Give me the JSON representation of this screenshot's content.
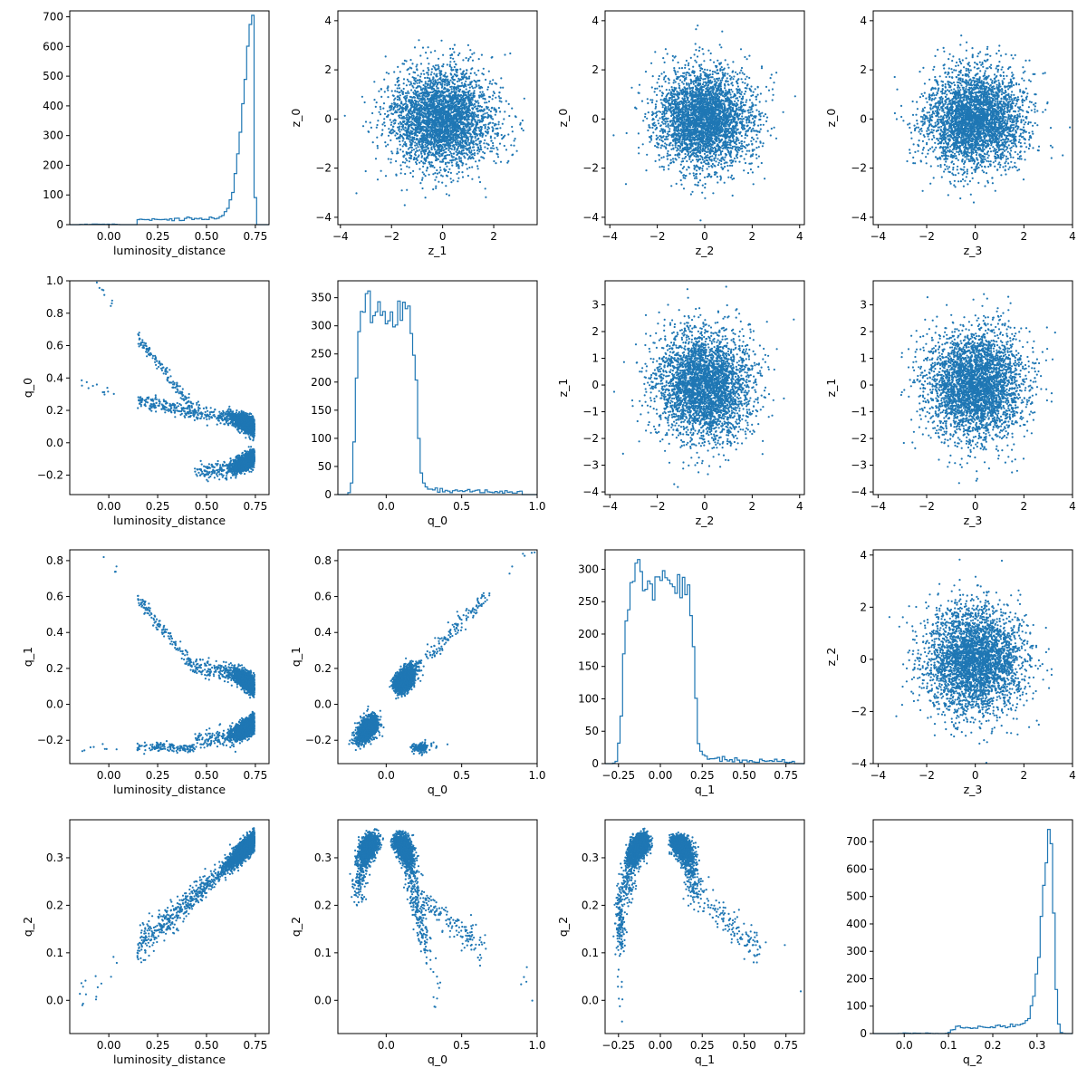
{
  "chart_data": {
    "type": "pairplot",
    "color": "#1f77b4",
    "points_per_scatter": 3500,
    "rows": [
      "z_0",
      "q_0",
      "q_1",
      "q_2"
    ],
    "panels": [
      {
        "row": 0,
        "col": 0,
        "type": "histogram",
        "x": "luminosity_distance",
        "xlabel": "luminosity_distance",
        "xlim": [
          -0.2,
          0.82
        ],
        "ylim": [
          0,
          720
        ],
        "xticks": [
          "0.00",
          "0.25",
          "0.50",
          "0.75"
        ],
        "xtickvals": [
          0,
          0.25,
          0.5,
          0.75
        ],
        "yticks": [
          "0",
          "100",
          "200",
          "300",
          "400",
          "500",
          "600",
          "700"
        ],
        "ytickvals": [
          0,
          100,
          200,
          300,
          400,
          500,
          600,
          700
        ],
        "peak": 705,
        "mode": 0.745
      },
      {
        "row": 0,
        "col": 1,
        "type": "scatter",
        "x": "z_1",
        "y": "z_0",
        "xlabel": "z_1",
        "ylabel": "z_0",
        "xlim": [
          -4.1,
          3.7
        ],
        "ylim": [
          -4.3,
          4.4
        ],
        "xticks": [
          "−4",
          "−2",
          "0",
          "2"
        ],
        "xtickvals": [
          -4,
          -2,
          0,
          2
        ],
        "yticks": [
          "−4",
          "−2",
          "0",
          "2",
          "4"
        ],
        "ytickvals": [
          -4,
          -2,
          0,
          2,
          4
        ]
      },
      {
        "row": 0,
        "col": 2,
        "type": "scatter",
        "x": "z_2",
        "y": "z_0",
        "xlabel": "z_2",
        "ylabel": "z_0",
        "xlim": [
          -4.2,
          4.2
        ],
        "ylim": [
          -4.3,
          4.4
        ],
        "xticks": [
          "−4",
          "−2",
          "0",
          "2",
          "4"
        ],
        "xtickvals": [
          -4,
          -2,
          0,
          2,
          4
        ],
        "yticks": [
          "−4",
          "−2",
          "0",
          "2",
          "4"
        ],
        "ytickvals": [
          -4,
          -2,
          0,
          2,
          4
        ]
      },
      {
        "row": 0,
        "col": 3,
        "type": "scatter",
        "x": "z_3",
        "y": "z_0",
        "xlabel": "z_3",
        "ylabel": "z_0",
        "xlim": [
          -4.2,
          4.0
        ],
        "ylim": [
          -4.3,
          4.4
        ],
        "xticks": [
          "−4",
          "−2",
          "0",
          "2",
          "4"
        ],
        "xtickvals": [
          -4,
          -2,
          0,
          2,
          4
        ],
        "yticks": [
          "−4",
          "−2",
          "0",
          "2",
          "4"
        ],
        "ytickvals": [
          -4,
          -2,
          0,
          2,
          4
        ]
      },
      {
        "row": 1,
        "col": 0,
        "type": "scatter",
        "x": "luminosity_distance",
        "y": "q_0",
        "xlabel": "luminosity_distance",
        "ylabel": "q_0",
        "xlim": [
          -0.2,
          0.82
        ],
        "ylim": [
          -0.32,
          1.0
        ],
        "xticks": [
          "0.00",
          "0.25",
          "0.50",
          "0.75"
        ],
        "xtickvals": [
          0,
          0.25,
          0.5,
          0.75
        ],
        "yticks": [
          "−0.2",
          "0.0",
          "0.2",
          "0.4",
          "0.6",
          "0.8",
          "1.0"
        ],
        "ytickvals": [
          -0.2,
          0,
          0.2,
          0.4,
          0.6,
          0.8,
          1.0
        ]
      },
      {
        "row": 1,
        "col": 1,
        "type": "histogram",
        "x": "q_0",
        "xlabel": "q_0",
        "xlim": [
          -0.32,
          1.0
        ],
        "ylim": [
          0,
          380
        ],
        "xticks": [
          "0.0",
          "0.5",
          "1.0"
        ],
        "xtickvals": [
          0,
          0.5,
          1.0
        ],
        "yticks": [
          "0",
          "50",
          "100",
          "150",
          "200",
          "250",
          "300",
          "350"
        ],
        "ytickvals": [
          0,
          50,
          100,
          150,
          200,
          250,
          300,
          350
        ],
        "peak": 362
      },
      {
        "row": 1,
        "col": 2,
        "type": "scatter",
        "x": "z_2",
        "y": "z_1",
        "xlabel": "z_2",
        "ylabel": "z_1",
        "xlim": [
          -4.2,
          4.2
        ],
        "ylim": [
          -4.1,
          3.9
        ],
        "xticks": [
          "−4",
          "−2",
          "0",
          "2",
          "4"
        ],
        "xtickvals": [
          -4,
          -2,
          0,
          2,
          4
        ],
        "yticks": [
          "−4",
          "−3",
          "−2",
          "−1",
          "0",
          "1",
          "2",
          "3"
        ],
        "ytickvals": [
          -4,
          -3,
          -2,
          -1,
          0,
          1,
          2,
          3
        ]
      },
      {
        "row": 1,
        "col": 3,
        "type": "scatter",
        "x": "z_3",
        "y": "z_1",
        "xlabel": "z_3",
        "ylabel": "z_1",
        "xlim": [
          -4.2,
          4.0
        ],
        "ylim": [
          -4.1,
          3.9
        ],
        "xticks": [
          "−4",
          "−2",
          "0",
          "2",
          "4"
        ],
        "xtickvals": [
          -4,
          -2,
          0,
          2,
          4
        ],
        "yticks": [
          "−4",
          "−3",
          "−2",
          "−1",
          "0",
          "1",
          "2",
          "3"
        ],
        "ytickvals": [
          -4,
          -3,
          -2,
          -1,
          0,
          1,
          2,
          3
        ]
      },
      {
        "row": 2,
        "col": 0,
        "type": "scatter",
        "x": "luminosity_distance",
        "y": "q_1",
        "xlabel": "luminosity_distance",
        "ylabel": "q_1",
        "xlim": [
          -0.2,
          0.82
        ],
        "ylim": [
          -0.33,
          0.86
        ],
        "xticks": [
          "0.00",
          "0.25",
          "0.50",
          "0.75"
        ],
        "xtickvals": [
          0,
          0.25,
          0.5,
          0.75
        ],
        "yticks": [
          "−0.2",
          "0.0",
          "0.2",
          "0.4",
          "0.6",
          "0.8"
        ],
        "ytickvals": [
          -0.2,
          0,
          0.2,
          0.4,
          0.6,
          0.8
        ]
      },
      {
        "row": 2,
        "col": 1,
        "type": "scatter",
        "x": "q_0",
        "y": "q_1",
        "xlabel": "q_0",
        "ylabel": "q_1",
        "xlim": [
          -0.32,
          1.0
        ],
        "ylim": [
          -0.33,
          0.86
        ],
        "xticks": [
          "0.0",
          "0.5",
          "1.0"
        ],
        "xtickvals": [
          0,
          0.5,
          1.0
        ],
        "yticks": [
          "−0.2",
          "0.0",
          "0.2",
          "0.4",
          "0.6",
          "0.8"
        ],
        "ytickvals": [
          -0.2,
          0,
          0.2,
          0.4,
          0.6,
          0.8
        ]
      },
      {
        "row": 2,
        "col": 2,
        "type": "histogram",
        "x": "q_1",
        "xlabel": "q_1",
        "xlim": [
          -0.33,
          0.86
        ],
        "ylim": [
          0,
          330
        ],
        "xticks": [
          "−0.25",
          "0.00",
          "0.25",
          "0.50",
          "0.75"
        ],
        "xtickvals": [
          -0.25,
          0,
          0.25,
          0.5,
          0.75
        ],
        "yticks": [
          "0",
          "50",
          "100",
          "150",
          "200",
          "250",
          "300"
        ],
        "ytickvals": [
          0,
          50,
          100,
          150,
          200,
          250,
          300
        ],
        "peak": 315
      },
      {
        "row": 2,
        "col": 3,
        "type": "scatter",
        "x": "z_3",
        "y": "z_2",
        "xlabel": "z_3",
        "ylabel": "z_2",
        "xlim": [
          -4.2,
          4.0
        ],
        "ylim": [
          -4.0,
          4.2
        ],
        "xticks": [
          "−4",
          "−2",
          "0",
          "2",
          "4"
        ],
        "xtickvals": [
          -4,
          -2,
          0,
          2,
          4
        ],
        "yticks": [
          "−4",
          "−2",
          "0",
          "2",
          "4"
        ],
        "ytickvals": [
          -4,
          -2,
          0,
          2,
          4
        ]
      },
      {
        "row": 3,
        "col": 0,
        "type": "scatter",
        "x": "luminosity_distance",
        "y": "q_2",
        "xlabel": "luminosity_distance",
        "ylabel": "q_2",
        "xlim": [
          -0.2,
          0.82
        ],
        "ylim": [
          -0.07,
          0.38
        ],
        "xticks": [
          "0.00",
          "0.25",
          "0.50",
          "0.75"
        ],
        "xtickvals": [
          0,
          0.25,
          0.5,
          0.75
        ],
        "yticks": [
          "0.0",
          "0.1",
          "0.2",
          "0.3"
        ],
        "ytickvals": [
          0,
          0.1,
          0.2,
          0.3
        ]
      },
      {
        "row": 3,
        "col": 1,
        "type": "scatter",
        "x": "q_0",
        "y": "q_2",
        "xlabel": "q_0",
        "ylabel": "q_2",
        "xlim": [
          -0.32,
          1.0
        ],
        "ylim": [
          -0.07,
          0.38
        ],
        "xticks": [
          "0.0",
          "0.5",
          "1.0"
        ],
        "xtickvals": [
          0,
          0.5,
          1.0
        ],
        "yticks": [
          "0.0",
          "0.1",
          "0.2",
          "0.3"
        ],
        "ytickvals": [
          0,
          0.1,
          0.2,
          0.3
        ]
      },
      {
        "row": 3,
        "col": 2,
        "type": "scatter",
        "x": "q_1",
        "y": "q_2",
        "xlabel": "q_1",
        "ylabel": "q_2",
        "xlim": [
          -0.33,
          0.86
        ],
        "ylim": [
          -0.07,
          0.38
        ],
        "xticks": [
          "−0.25",
          "0.00",
          "0.25",
          "0.50",
          "0.75"
        ],
        "xtickvals": [
          -0.25,
          0,
          0.25,
          0.5,
          0.75
        ],
        "yticks": [
          "0.0",
          "0.1",
          "0.2",
          "0.3"
        ],
        "ytickvals": [
          0,
          0.1,
          0.2,
          0.3
        ]
      },
      {
        "row": 3,
        "col": 3,
        "type": "histogram",
        "x": "q_2",
        "xlabel": "q_2",
        "xlim": [
          -0.07,
          0.38
        ],
        "ylim": [
          0,
          780
        ],
        "xticks": [
          "0.0",
          "0.1",
          "0.2",
          "0.3"
        ],
        "xtickvals": [
          0,
          0.1,
          0.2,
          0.3
        ],
        "yticks": [
          "0",
          "100",
          "200",
          "300",
          "400",
          "500",
          "600",
          "700"
        ],
        "ytickvals": [
          0,
          100,
          200,
          300,
          400,
          500,
          600,
          700
        ],
        "peak": 745,
        "mode": 0.335
      }
    ]
  }
}
